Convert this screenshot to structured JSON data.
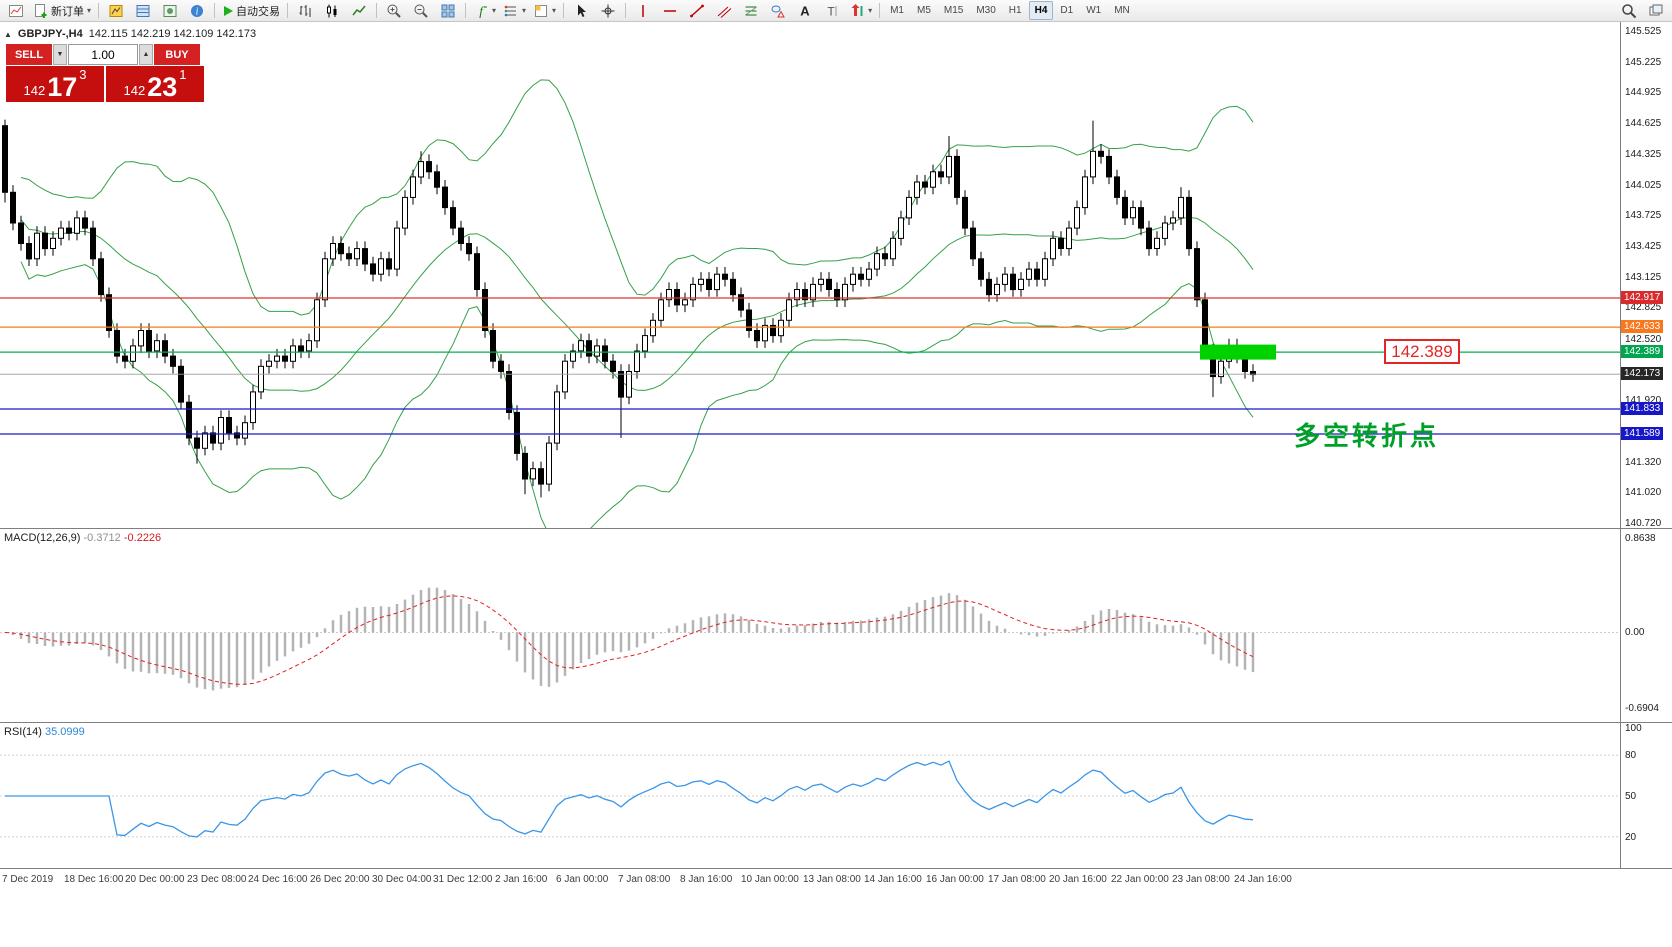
{
  "toolbar": {
    "new_order_label": "新订单",
    "autotrade_label": "自动交易",
    "timeframes": [
      "M1",
      "M5",
      "M15",
      "M30",
      "H1",
      "H4",
      "D1",
      "W1",
      "MN"
    ],
    "active_timeframe": "H4",
    "items": [
      "new-chart-icon",
      "new-order-button",
      "sep",
      "market-watch-icon",
      "data-window-icon",
      "navigator-icon",
      "terminal-icon",
      "sep",
      "autotrade-button",
      "sep",
      "bars-icon",
      "candles-icon",
      "line-chart-icon",
      "sep",
      "zoom-in-icon",
      "zoom-out-icon",
      "tile-windows-icon",
      "sep",
      "indicators-icon",
      "objects-list-icon",
      "templates-icon",
      "sep",
      "cursor-icon",
      "crosshair-icon",
      "sep",
      "vertical-line-icon",
      "horizontal-line-icon",
      "trendline-icon",
      "channel-icon",
      "fibonacci-icon",
      "shapes-icon",
      "text-icon",
      "label-icon",
      "arrow-icon",
      "sep",
      "timeframes",
      "spacer",
      "search-icon",
      "windows-icon"
    ]
  },
  "quote": {
    "collapse_icon": "▲",
    "symbol_period": "GBPJPY-,H4",
    "ohlc": "142.115 142.219 142.109 142.173"
  },
  "trade_panel": {
    "sell_label": "SELL",
    "buy_label": "BUY",
    "volume": "1.00",
    "sell_price_base": "142",
    "sell_price_big": "17",
    "sell_price_sup": "3",
    "buy_price_base": "142",
    "buy_price_big": "23",
    "buy_price_sup": "1"
  },
  "price_axis": {
    "labels": [
      "145.525",
      "145.225",
      "144.925",
      "144.625",
      "144.325",
      "144.025",
      "143.725",
      "143.425",
      "143.125",
      "142.825",
      "142.520",
      "141.920",
      "141.320",
      "141.020",
      "140.720"
    ],
    "badges": [
      {
        "value": "142.917",
        "color": "#d92b2b"
      },
      {
        "value": "142.633",
        "color": "#f8781e"
      },
      {
        "value": "142.389",
        "color": "#00a550"
      },
      {
        "value": "142.173",
        "color": "#262626"
      },
      {
        "value": "141.833",
        "color": "#1717c8"
      },
      {
        "value": "141.589",
        "color": "#1717c8"
      }
    ]
  },
  "annotations": {
    "price_callout": "142.389",
    "note_text": "多空转折点",
    "note_color": "#00a028",
    "callout_color": "#e42525",
    "highlight_color": "#00d200"
  },
  "indicators": {
    "macd": {
      "title": "MACD(12,26,9)",
      "value_main": "-0.3712",
      "value_signal": "-0.2226",
      "axis": [
        "0.8638",
        "0.00",
        "-0.6904"
      ]
    },
    "rsi": {
      "title": "RSI(14)",
      "value": "35.0999",
      "axis": [
        "100",
        "80",
        "50",
        "20"
      ]
    }
  },
  "time_axis": [
    "7 Dec 2019",
    "18 Dec 16:00",
    "20 Dec 00:00",
    "23 Dec 08:00",
    "24 Dec 16:00",
    "26 Dec 20:00",
    "30 Dec 04:00",
    "31 Dec 12:00",
    "2 Jan 16:00",
    "6 Jan 00:00",
    "7 Jan 08:00",
    "8 Jan 16:00",
    "10 Jan 00:00",
    "13 Jan 08:00",
    "14 Jan 16:00",
    "16 Jan 00:00",
    "17 Jan 08:00",
    "20 Jan 16:00",
    "22 Jan 00:00",
    "23 Jan 08:00",
    "24 Jan 16:00"
  ],
  "chart_data": {
    "type": "candlestick",
    "symbol": "GBPJPY-",
    "period": "H4",
    "current": {
      "open": 142.115,
      "high": 142.219,
      "low": 142.109,
      "close": 142.173,
      "bid": 142.173,
      "ask": 142.231
    },
    "y_range": [
      140.72,
      145.525
    ],
    "first_open": 144.6,
    "wick": 0.07,
    "closes": [
      143.95,
      143.65,
      143.45,
      143.3,
      143.55,
      143.4,
      143.5,
      143.6,
      143.55,
      143.7,
      143.6,
      143.3,
      142.95,
      142.6,
      142.35,
      142.3,
      142.45,
      142.6,
      142.4,
      142.5,
      142.35,
      142.25,
      141.9,
      141.55,
      141.45,
      141.6,
      141.5,
      141.75,
      141.6,
      141.55,
      141.7,
      142.0,
      142.25,
      142.3,
      142.35,
      142.3,
      142.45,
      142.4,
      142.5,
      142.9,
      143.3,
      143.45,
      143.35,
      143.3,
      143.4,
      143.25,
      143.15,
      143.3,
      143.2,
      143.6,
      143.9,
      144.1,
      144.25,
      144.15,
      144.0,
      143.8,
      143.6,
      143.45,
      143.35,
      143.0,
      142.6,
      142.3,
      142.2,
      141.8,
      141.4,
      141.15,
      141.25,
      141.1,
      141.5,
      142.0,
      142.3,
      142.4,
      142.5,
      142.35,
      142.45,
      142.3,
      142.2,
      141.95,
      142.2,
      142.4,
      142.55,
      142.7,
      142.9,
      143.0,
      142.85,
      142.9,
      143.05,
      143.1,
      143.0,
      143.15,
      143.1,
      142.95,
      142.8,
      142.6,
      142.5,
      142.65,
      142.55,
      142.7,
      142.9,
      143.0,
      142.9,
      143.05,
      143.1,
      143.0,
      142.9,
      143.05,
      143.15,
      143.1,
      143.2,
      143.35,
      143.3,
      143.5,
      143.7,
      143.9,
      144.05,
      144.0,
      144.15,
      144.1,
      144.3,
      143.9,
      143.6,
      143.3,
      143.1,
      142.95,
      143.05,
      143.15,
      143.0,
      143.1,
      143.2,
      143.1,
      143.3,
      143.5,
      143.4,
      143.6,
      143.8,
      144.1,
      144.35,
      144.3,
      144.1,
      143.9,
      143.7,
      143.8,
      143.6,
      143.4,
      143.5,
      143.65,
      143.7,
      143.9,
      143.4,
      142.9,
      142.4,
      142.15,
      142.3,
      142.45,
      142.35,
      142.2,
      142.17
    ],
    "wick_overrides": {
      "0": {
        "h": 144.66,
        "l": 143.85
      },
      "24": {
        "l": 141.3
      },
      "52": {
        "h": 144.35
      },
      "65": {
        "l": 141.0
      },
      "67": {
        "l": 140.97
      },
      "77": {
        "l": 141.55
      },
      "118": {
        "h": 144.5
      },
      "136": {
        "h": 144.65
      },
      "147": {
        "h": 144.0
      },
      "151": {
        "l": 141.95
      }
    },
    "hlines": [
      {
        "price": 142.917,
        "color": "#e03030",
        "width": 1.3
      },
      {
        "price": 142.633,
        "color": "#f8781e",
        "width": 1.3
      },
      {
        "price": 142.389,
        "color": "#00b050",
        "width": 1.3
      },
      {
        "price": 142.173,
        "color": "#9a9a9a",
        "width": 0.8
      },
      {
        "price": 141.833,
        "color": "#1818cc",
        "width": 1.3
      },
      {
        "price": 141.589,
        "color": "#1818cc",
        "width": 1.3
      }
    ],
    "highlight_rect": {
      "x": 1200,
      "w": 76,
      "h": 15,
      "price": 142.389,
      "color": "#00d200"
    },
    "bollinger": {
      "period": 20,
      "deviation": 2,
      "color": "#35a048"
    },
    "macd": {
      "fast": 12,
      "slow": 26,
      "signal": 9,
      "range": [
        -0.6904,
        0.8638
      ],
      "hist_color": "#b4b4b4",
      "signal_color": "#e02020"
    },
    "rsi": {
      "period": 14,
      "color": "#3a96e8",
      "levels": [
        80,
        50,
        20
      ]
    }
  }
}
